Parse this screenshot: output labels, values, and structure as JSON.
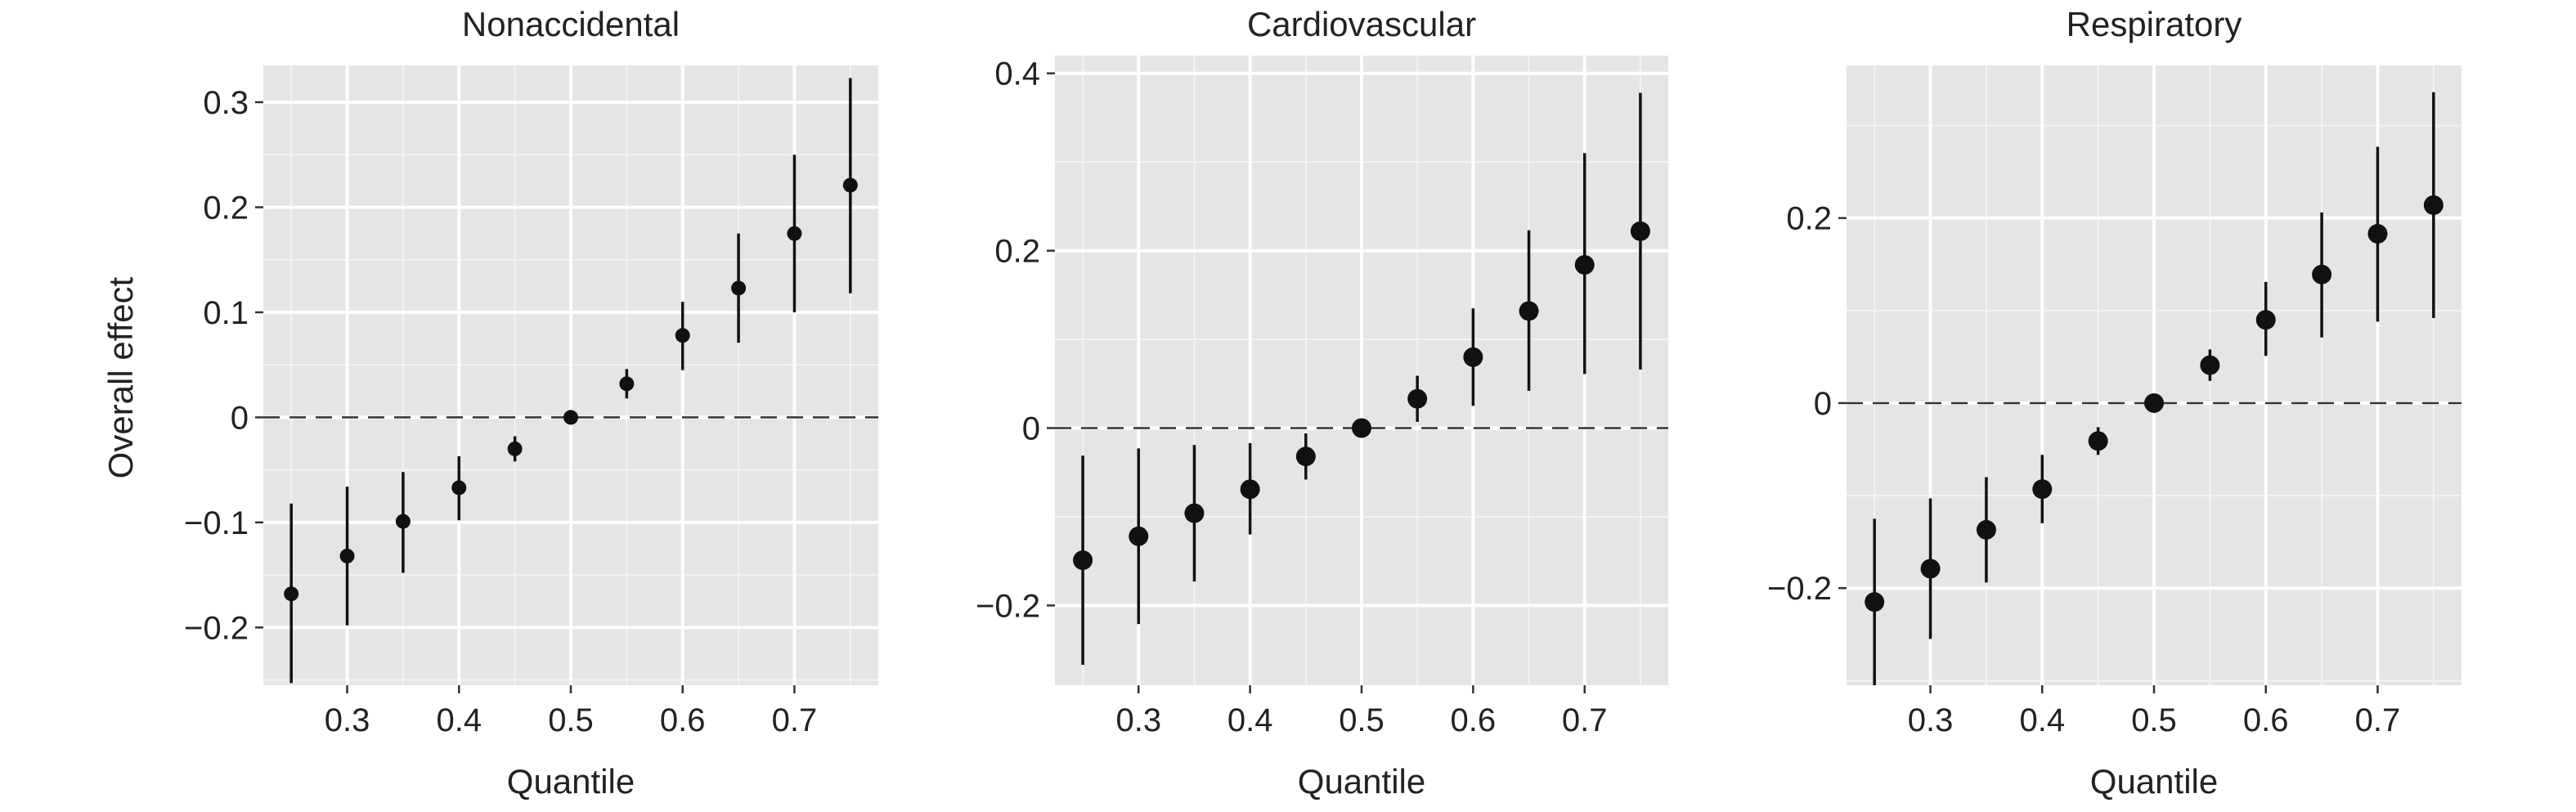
{
  "figure": {
    "ylabel": "Overall effect"
  },
  "chart_data": [
    {
      "type": "scatter",
      "title": "Nonaccidental",
      "xlabel": "Quantile",
      "ylabel": "Overall effect",
      "xlim": [
        0.225,
        0.775
      ],
      "ylim": [
        -0.255,
        0.335
      ],
      "xticks": [
        0.3,
        0.4,
        0.5,
        0.6,
        0.7
      ],
      "xtick_labels": [
        "0.3",
        "0.4",
        "0.5",
        "0.6",
        "0.7"
      ],
      "yticks": [
        -0.2,
        -0.1,
        0,
        0.1,
        0.2,
        0.3
      ],
      "ytick_labels": [
        "−0.2",
        "−0.1",
        "0",
        "0.1",
        "0.2",
        "0.3"
      ],
      "x": [
        0.25,
        0.3,
        0.35,
        0.4,
        0.45,
        0.5,
        0.55,
        0.6,
        0.65,
        0.7,
        0.75
      ],
      "y": [
        -0.168,
        -0.132,
        -0.099,
        -0.067,
        -0.03,
        0.0,
        0.032,
        0.078,
        0.123,
        0.175,
        0.221
      ],
      "lower": [
        -0.253,
        -0.198,
        -0.148,
        -0.098,
        -0.042,
        0.0,
        0.018,
        0.045,
        0.071,
        0.1,
        0.118
      ],
      "upper": [
        -0.082,
        -0.066,
        -0.052,
        -0.037,
        -0.018,
        0.0,
        0.046,
        0.11,
        0.175,
        0.25,
        0.323
      ],
      "reference_line": 0,
      "grid": true
    },
    {
      "type": "scatter",
      "title": "Cardiovascular",
      "xlabel": "Quantile",
      "ylabel": "",
      "xlim": [
        0.225,
        0.775
      ],
      "ylim": [
        -0.29,
        0.42
      ],
      "xticks": [
        0.3,
        0.4,
        0.5,
        0.6,
        0.7
      ],
      "xtick_labels": [
        "0.3",
        "0.4",
        "0.5",
        "0.6",
        "0.7"
      ],
      "yticks": [
        -0.2,
        0,
        0.2,
        0.4
      ],
      "ytick_labels": [
        "−0.2",
        "0",
        "0.2",
        "0.4"
      ],
      "x": [
        0.25,
        0.3,
        0.35,
        0.4,
        0.45,
        0.5,
        0.55,
        0.6,
        0.65,
        0.7,
        0.75
      ],
      "y": [
        -0.149,
        -0.122,
        -0.096,
        -0.069,
        -0.032,
        0.0,
        0.033,
        0.08,
        0.132,
        0.184,
        0.222
      ],
      "lower": [
        -0.267,
        -0.221,
        -0.173,
        -0.12,
        -0.058,
        0.0,
        0.007,
        0.025,
        0.042,
        0.061,
        0.066
      ],
      "upper": [
        -0.031,
        -0.023,
        -0.019,
        -0.017,
        -0.006,
        0.0,
        0.059,
        0.135,
        0.223,
        0.31,
        0.378
      ],
      "reference_line": 0,
      "grid": true
    },
    {
      "type": "scatter",
      "title": "Respiratory",
      "xlabel": "Quantile",
      "ylabel": "",
      "xlim": [
        0.225,
        0.775
      ],
      "ylim": [
        -0.305,
        0.365
      ],
      "xticks": [
        0.3,
        0.4,
        0.5,
        0.6,
        0.7
      ],
      "xtick_labels": [
        "0.3",
        "0.4",
        "0.5",
        "0.6",
        "0.7"
      ],
      "yticks": [
        -0.2,
        0,
        0.2
      ],
      "ytick_labels": [
        "−0.2",
        "0",
        "0.2"
      ],
      "x": [
        0.25,
        0.3,
        0.35,
        0.4,
        0.45,
        0.5,
        0.55,
        0.6,
        0.65,
        0.7,
        0.75
      ],
      "y": [
        -0.215,
        -0.179,
        -0.137,
        -0.093,
        -0.041,
        0.0,
        0.041,
        0.09,
        0.139,
        0.183,
        0.214
      ],
      "lower": [
        -0.305,
        -0.255,
        -0.194,
        -0.13,
        -0.056,
        0.0,
        0.024,
        0.051,
        0.071,
        0.088,
        0.092
      ],
      "upper": [
        -0.125,
        -0.103,
        -0.08,
        -0.056,
        -0.026,
        0.0,
        0.058,
        0.131,
        0.206,
        0.277,
        0.336
      ],
      "reference_line": 0,
      "grid": true
    }
  ]
}
